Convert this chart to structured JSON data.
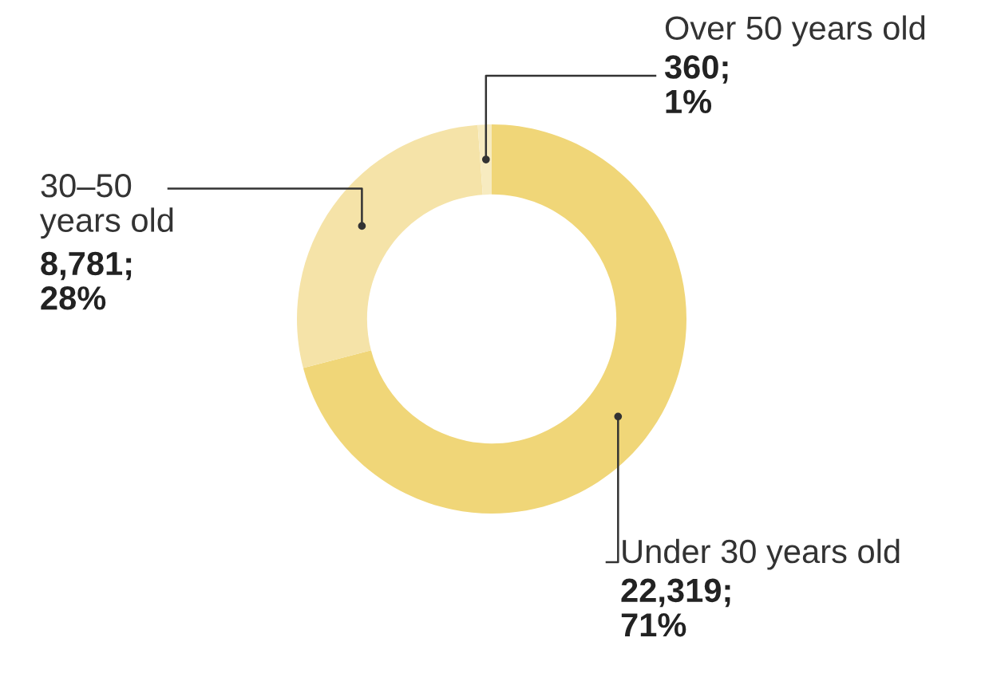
{
  "chart_data": {
    "type": "donut",
    "categories": [
      "Under 30 years old",
      "30–50 years old",
      "Over 50 years old"
    ],
    "values": [
      22319,
      8781,
      360
    ],
    "colors": [
      "#f0d678",
      "#f5e3a8",
      "#f7ebc0"
    ],
    "value_labels": [
      "22,319;\n71%",
      "8,781;\n28%",
      "360;\n1%"
    ],
    "legend": false
  }
}
